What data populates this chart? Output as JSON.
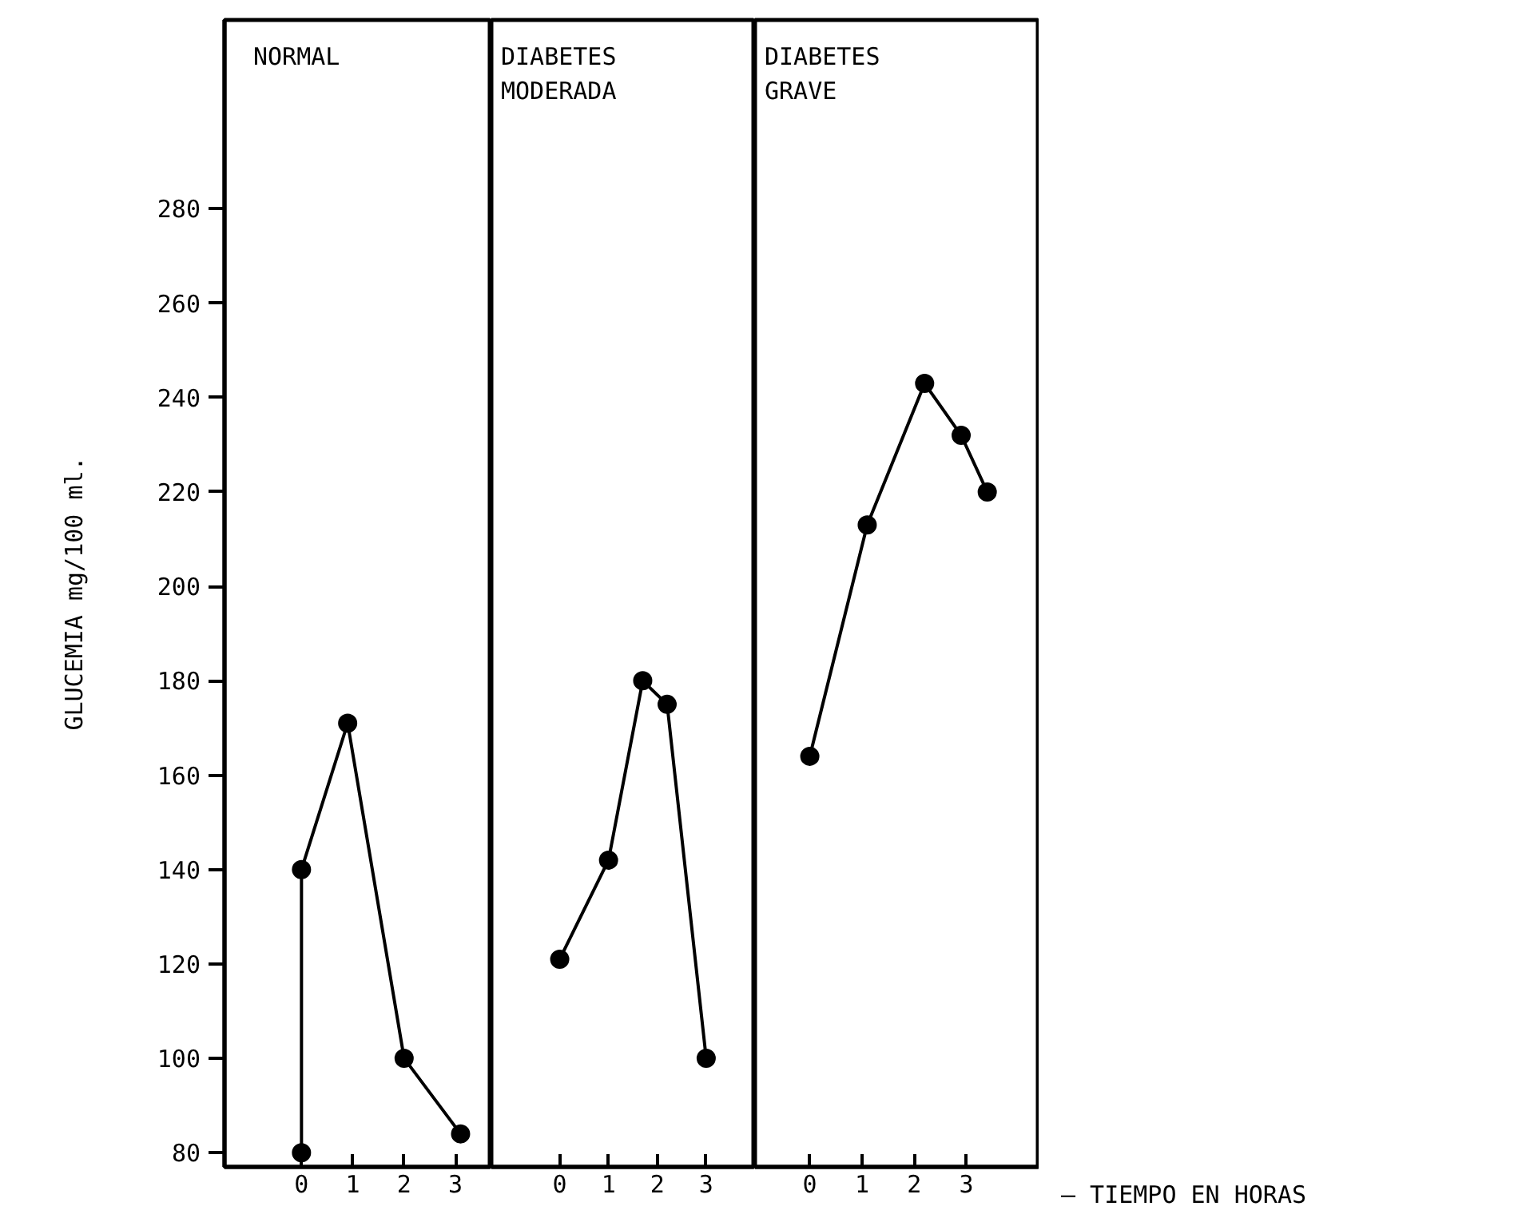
{
  "chart_data": [
    {
      "type": "line",
      "title": "NORMAL",
      "ylabel": "GLUCEMIA mg/100 ml.",
      "x": [
        0,
        0,
        0.9,
        2,
        3.1
      ],
      "series": [
        {
          "color": "#000000",
          "values": [
            80,
            140,
            171,
            100,
            84
          ]
        }
      ],
      "marker": "circle",
      "line_style": "solid",
      "xlim": [
        -1.5,
        3.7
      ],
      "xticks": [
        0,
        1,
        2,
        3
      ],
      "ylim": [
        77,
        320
      ],
      "yticks": [
        80,
        100,
        120,
        140,
        160,
        180,
        200,
        220,
        240,
        260,
        280
      ]
    },
    {
      "type": "line",
      "title": "DIABETES\nMODERADA",
      "x": [
        0,
        1,
        1.7,
        2.2,
        3
      ],
      "series": [
        {
          "color": "#000000",
          "values": [
            121,
            142,
            180,
            175,
            100
          ]
        }
      ],
      "marker": "circle",
      "line_style": "solid",
      "xlim": [
        -1.4,
        4.0
      ],
      "xticks": [
        0,
        1,
        2,
        3
      ],
      "ylim": [
        77,
        320
      ],
      "yticks": [
        80,
        100,
        120,
        140,
        160,
        180,
        200,
        220,
        240,
        260,
        280
      ],
      "tick_labels": "x"
    },
    {
      "type": "line",
      "title": "DIABETES\nGRAVE",
      "xlabel": "– TIEMPO EN HORAS",
      "x": [
        0,
        1.1,
        2.2,
        2.9,
        3.4
      ],
      "series": [
        {
          "color": "#000000",
          "values": [
            164,
            213,
            243,
            232,
            220
          ]
        }
      ],
      "marker": "circle",
      "line_style": "solid",
      "xlim": [
        -1.05,
        4.4
      ],
      "xticks": [
        0,
        1,
        2,
        3
      ],
      "ylim": [
        77,
        320
      ],
      "yticks": [
        80,
        100,
        120,
        140,
        160,
        180,
        200,
        220,
        240,
        260,
        280
      ],
      "tick_labels": "x"
    }
  ]
}
